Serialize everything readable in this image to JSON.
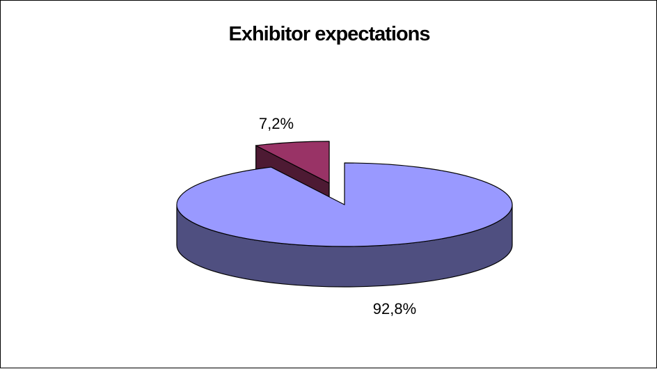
{
  "chart_data": {
    "type": "pie",
    "style": "3d-exploded",
    "title": "Exhibitor expectations",
    "slices": [
      {
        "value": 92.8,
        "label": "92,8%",
        "color": "#9999FF",
        "side_color": "#4F4F80"
      },
      {
        "value": 7.2,
        "label": "7,2%",
        "color": "#993366",
        "side_color": "#4D1A33"
      }
    ],
    "legend": "none"
  }
}
